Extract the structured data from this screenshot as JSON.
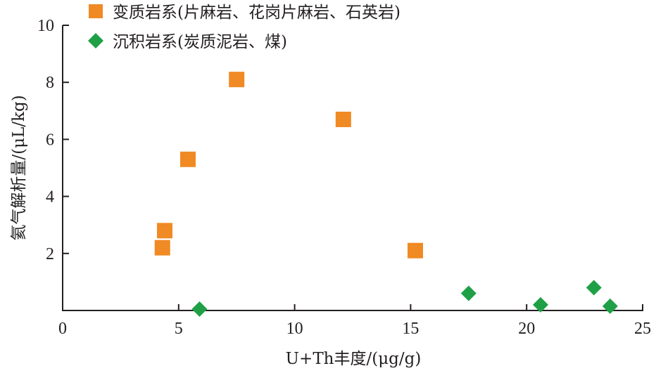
{
  "chart_data": {
    "type": "scatter",
    "xlabel": "U+Th丰度/(μg/g)",
    "ylabel": "氦气解析量/(μL/kg)",
    "xlim": [
      0,
      25
    ],
    "ylim": [
      0,
      10
    ],
    "x_ticks": [
      0,
      5,
      10,
      15,
      20,
      25
    ],
    "y_ticks": [
      2,
      4,
      6,
      8,
      10
    ],
    "x_tick_labels": [
      "0",
      "5",
      "10",
      "15",
      "20",
      "25"
    ],
    "y_tick_labels": [
      "2",
      "4",
      "6",
      "8",
      "10"
    ],
    "grid": false,
    "legend_position": "top-left",
    "series": [
      {
        "name": "变质岩系(片麻岩、花岗片麻岩、石英岩)",
        "marker": "square",
        "color": "#f08a24",
        "points": [
          {
            "x": 4.3,
            "y": 2.2
          },
          {
            "x": 4.4,
            "y": 2.8
          },
          {
            "x": 5.4,
            "y": 5.3
          },
          {
            "x": 7.5,
            "y": 8.1
          },
          {
            "x": 12.1,
            "y": 6.7
          },
          {
            "x": 15.2,
            "y": 2.1
          }
        ]
      },
      {
        "name": "沉积岩系(炭质泥岩、煤)",
        "marker": "diamond",
        "color": "#1fa046",
        "points": [
          {
            "x": 5.9,
            "y": 0.05
          },
          {
            "x": 17.5,
            "y": 0.6
          },
          {
            "x": 20.6,
            "y": 0.2
          },
          {
            "x": 22.9,
            "y": 0.8
          },
          {
            "x": 23.6,
            "y": 0.15
          }
        ]
      }
    ]
  }
}
